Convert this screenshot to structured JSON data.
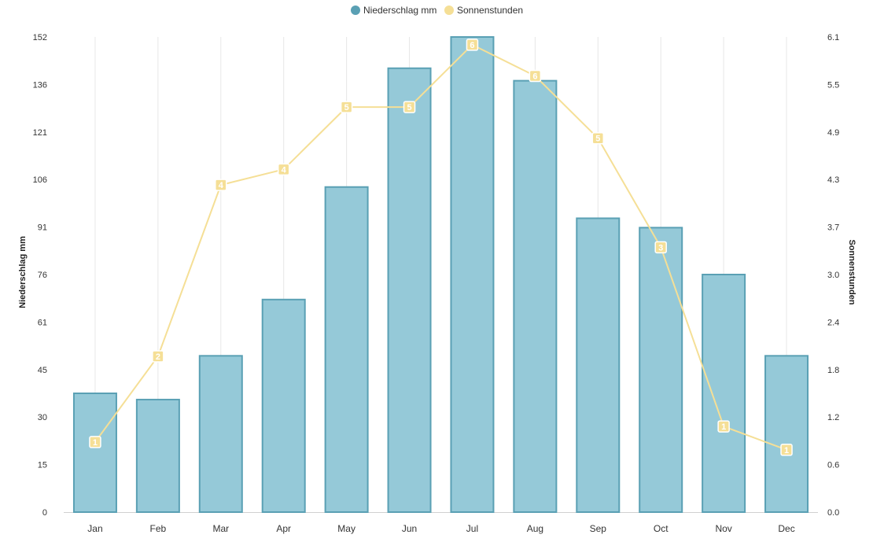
{
  "chart_data": {
    "type": "bar",
    "categories": [
      "Jan",
      "Feb",
      "Mar",
      "Apr",
      "May",
      "Jun",
      "Jul",
      "Aug",
      "Sep",
      "Oct",
      "Nov",
      "Dec"
    ],
    "series": [
      {
        "name": "Niederschlag mm",
        "type": "bar",
        "axis": "left",
        "color": "#95c9d8",
        "border_color": "#5aa0b4",
        "values": [
          38,
          36,
          50,
          68,
          104,
          142,
          152,
          138,
          94,
          91,
          76,
          50
        ]
      },
      {
        "name": "Sonnenstunden",
        "type": "line",
        "axis": "right",
        "color": "#f5df96",
        "values": [
          0.9,
          2.0,
          4.2,
          4.4,
          5.2,
          5.2,
          6.0,
          5.6,
          4.8,
          3.4,
          1.1,
          0.8
        ],
        "point_labels": [
          "1",
          "2",
          "4",
          "4",
          "5",
          "5",
          "6",
          "6",
          "5",
          "3",
          "1",
          "1"
        ]
      }
    ],
    "ylabel": "Niederschlag mm",
    "y2label": "Sonnenstunden",
    "ylim": [
      0,
      152
    ],
    "y2lim": [
      0,
      6.1
    ],
    "yticks": [
      "0",
      "15",
      "30",
      "45",
      "61",
      "76",
      "91",
      "106",
      "121",
      "136",
      "152"
    ],
    "y2ticks": [
      "0.0",
      "0.6",
      "1.2",
      "1.8",
      "2.4",
      "3.0",
      "3.7",
      "4.3",
      "4.9",
      "5.5",
      "6.1"
    ],
    "legend_position": "top-center",
    "grid": "vertical"
  }
}
